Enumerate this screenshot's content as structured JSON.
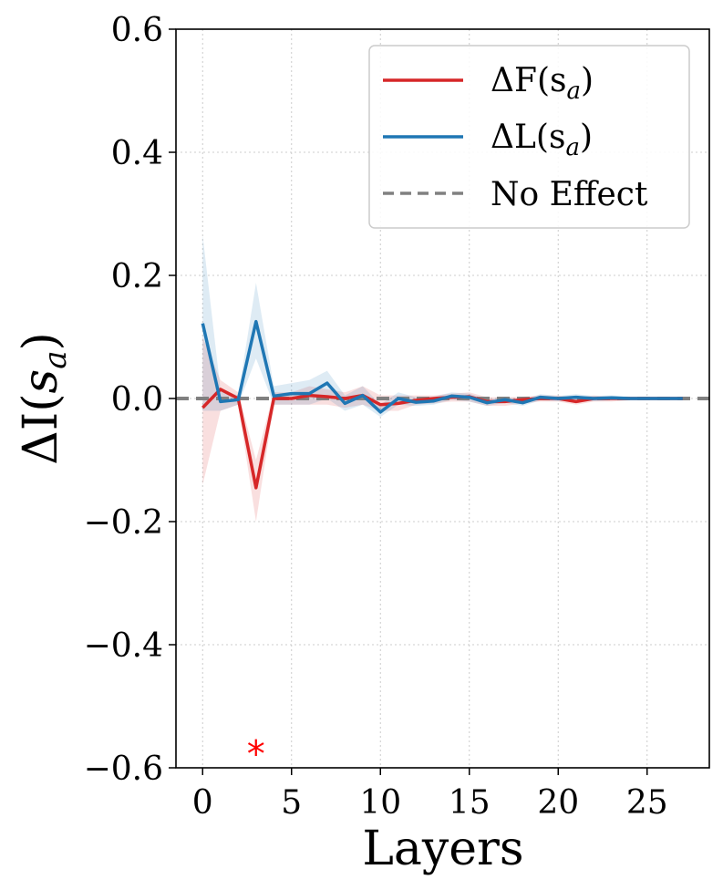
{
  "chart_data": {
    "type": "line",
    "title": "",
    "xlabel": "Layers",
    "ylabel_prefix": "ΔI(",
    "ylabel_var": "s",
    "ylabel_sub": "a",
    "ylabel_suffix": ")",
    "xlim": [
      -1.5,
      28.5
    ],
    "ylim": [
      -0.6,
      0.6
    ],
    "xticks": [
      0,
      5,
      10,
      15,
      20,
      25
    ],
    "yticks": [
      {
        "value": 0.6,
        "label": "0.6"
      },
      {
        "value": 0.4,
        "label": "0.4"
      },
      {
        "value": 0.2,
        "label": "0.2"
      },
      {
        "value": 0.0,
        "label": "0.0"
      },
      {
        "value": -0.2,
        "label": "−0.2"
      },
      {
        "value": -0.4,
        "label": "−0.4"
      },
      {
        "value": -0.6,
        "label": "−0.6"
      }
    ],
    "grid": true,
    "legend_position": "top-right",
    "x": [
      0,
      1,
      2,
      3,
      4,
      5,
      6,
      7,
      8,
      9,
      10,
      11,
      12,
      13,
      14,
      15,
      16,
      17,
      18,
      19,
      20,
      21,
      22,
      23,
      24,
      25,
      26,
      27
    ],
    "series": [
      {
        "name": "ΔF(s_a)",
        "legend_main": "ΔF(s",
        "legend_sub": "a",
        "legend_close": ")",
        "color": "#d62728",
        "values": [
          -0.015,
          0.015,
          0.0,
          -0.145,
          0.0,
          0.0,
          0.005,
          0.003,
          0.0,
          0.005,
          -0.01,
          -0.008,
          -0.003,
          0.0,
          0.002,
          0.003,
          -0.005,
          -0.005,
          -0.002,
          0.0,
          0.0,
          -0.005,
          0.0,
          0.0,
          0.0,
          0.0,
          0.0,
          0.0
        ],
        "lower": [
          -0.14,
          -0.02,
          -0.01,
          -0.2,
          -0.01,
          -0.01,
          -0.01,
          -0.01,
          -0.015,
          -0.01,
          -0.02,
          -0.02,
          -0.01,
          -0.008,
          -0.005,
          -0.005,
          -0.012,
          -0.012,
          -0.008,
          -0.005,
          -0.005,
          -0.01,
          -0.005,
          -0.005,
          -0.003,
          -0.003,
          -0.003,
          -0.003
        ],
        "upper": [
          0.1,
          0.03,
          0.01,
          -0.1,
          0.01,
          0.01,
          0.02,
          0.015,
          0.01,
          0.02,
          0.005,
          0.005,
          0.005,
          0.005,
          0.008,
          0.01,
          0.002,
          0.002,
          0.003,
          0.005,
          0.005,
          0.002,
          0.005,
          0.003,
          0.003,
          0.003,
          0.003,
          0.003
        ]
      },
      {
        "name": "ΔL(s_a)",
        "legend_main": "ΔL(s",
        "legend_sub": "a",
        "legend_close": ")",
        "color": "#1f77b4",
        "values": [
          0.122,
          -0.005,
          -0.002,
          0.125,
          0.004,
          0.008,
          0.008,
          0.025,
          -0.008,
          0.005,
          -0.022,
          0.0,
          -0.006,
          -0.004,
          0.004,
          0.002,
          -0.007,
          -0.002,
          -0.007,
          0.002,
          0.0,
          0.002,
          0.0,
          0.001,
          0.0,
          0.0,
          0.0,
          0.0
        ],
        "lower": [
          -0.02,
          -0.02,
          -0.01,
          0.065,
          -0.01,
          -0.01,
          -0.01,
          0.0,
          -0.02,
          -0.01,
          -0.03,
          -0.01,
          -0.012,
          -0.01,
          -0.002,
          -0.005,
          -0.012,
          -0.007,
          -0.012,
          -0.003,
          -0.004,
          -0.003,
          -0.004,
          -0.003,
          -0.003,
          -0.003,
          -0.003,
          -0.003
        ],
        "upper": [
          0.265,
          0.015,
          0.005,
          0.188,
          0.02,
          0.025,
          0.03,
          0.045,
          0.005,
          0.02,
          -0.01,
          0.01,
          0.002,
          0.003,
          0.01,
          0.008,
          -0.002,
          0.003,
          -0.002,
          0.007,
          0.004,
          0.007,
          0.004,
          0.005,
          0.003,
          0.003,
          0.003,
          0.003
        ]
      }
    ],
    "reference_line": {
      "name": "No Effect",
      "value": 0.0,
      "color": "#808080",
      "style": "dashed"
    },
    "annotation": {
      "text": "*",
      "x": 3,
      "y": -0.565,
      "color": "#ff0000"
    }
  }
}
